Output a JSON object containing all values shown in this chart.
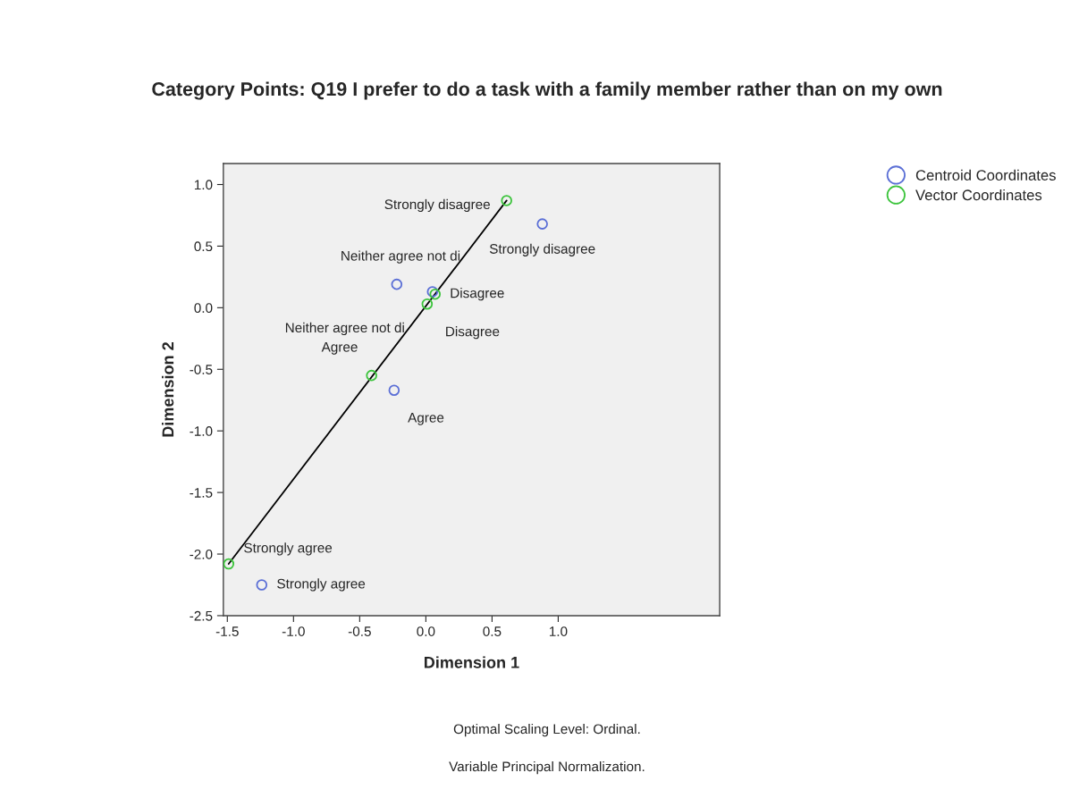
{
  "chart_data": {
    "type": "scatter",
    "title": "Category Points: Q19 I prefer to do a task with a family member rather than on my own",
    "xlabel": "Dimension 1",
    "ylabel": "Dimension 2",
    "xlim": [
      -1.53,
      2.22
    ],
    "ylim": [
      -2.5,
      1.17
    ],
    "xticks": [
      {
        "value": -1.5,
        "label": "-1.5"
      },
      {
        "value": -1.0,
        "label": "-1.0"
      },
      {
        "value": -0.5,
        "label": "-0.5"
      },
      {
        "value": 0.0,
        "label": "0.0"
      },
      {
        "value": 0.5,
        "label": "0.5"
      },
      {
        "value": 1.0,
        "label": "1.0"
      }
    ],
    "yticks": [
      {
        "value": -2.5,
        "label": "-2.5"
      },
      {
        "value": -2.0,
        "label": "-2.0"
      },
      {
        "value": -1.5,
        "label": "-1.5"
      },
      {
        "value": -1.0,
        "label": "-1.0"
      },
      {
        "value": -0.5,
        "label": "-0.5"
      },
      {
        "value": 0.0,
        "label": "0.0"
      },
      {
        "value": 0.5,
        "label": "0.5"
      },
      {
        "value": 1.0,
        "label": "1.0"
      }
    ],
    "marker": "circle",
    "grid": false,
    "legend": "top right",
    "series": [
      {
        "name": "Centroid Coordinates",
        "color": "#5b6fd6",
        "x": [
          0.88,
          -0.22,
          0.05,
          -0.24,
          -1.24
        ],
        "values": [
          0.68,
          0.19,
          0.13,
          -0.67,
          -2.25
        ]
      },
      {
        "name": "Vector Coordinates",
        "color": "#3cc43c",
        "x": [
          0.61,
          0.07,
          0.01,
          -0.41,
          -1.49
        ],
        "values": [
          0.87,
          0.11,
          0.03,
          -0.55,
          -2.08
        ]
      },
      {
        "type": "line",
        "marker": "none",
        "color": "#000000",
        "x": [
          -1.49,
          0.61
        ],
        "values": [
          -2.08,
          0.87
        ]
      }
    ],
    "annotations": [
      {
        "text": "Strongly disagree",
        "x": 0.61,
        "y": 0.87
      },
      {
        "text": "Strongly disagree",
        "x": 0.88,
        "y": 0.68
      },
      {
        "text": "Neither agree not di",
        "x": -0.22,
        "y": 0.19
      },
      {
        "text": "Disagree",
        "x": 0.05,
        "y": 0.13
      },
      {
        "text": "Neither agree not di",
        "x": 0.01,
        "y": 0.03
      },
      {
        "text": "Disagree",
        "x": 0.07,
        "y": 0.11
      },
      {
        "text": "Agree",
        "x": -0.41,
        "y": -0.55
      },
      {
        "text": "Agree",
        "x": -0.24,
        "y": -0.67
      },
      {
        "text": "Strongly agree",
        "x": -1.49,
        "y": -2.08
      },
      {
        "text": "Strongly agree",
        "x": -1.24,
        "y": -2.25
      },
      "Optimal Scaling Level: Ordinal.",
      "Variable Principal Normalization."
    ]
  }
}
